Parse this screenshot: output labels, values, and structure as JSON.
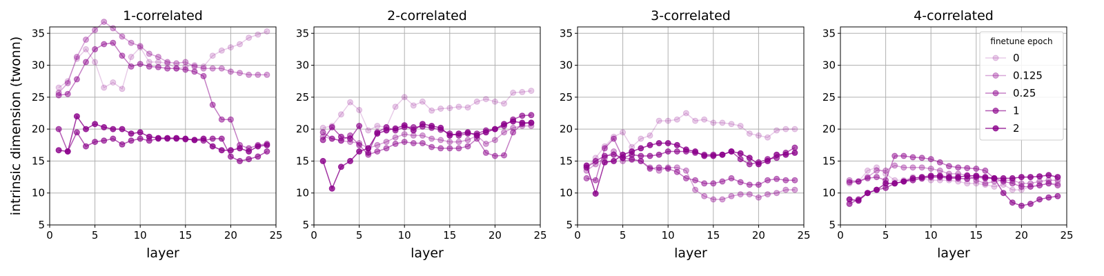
{
  "figure": {
    "ylabel": "intrinsic dimension (twonn)",
    "xlabel": "layer",
    "legend_title": "finetune epoch",
    "legend_position": "top-right of last panel"
  },
  "colors": {
    "series": "#8b008b",
    "grid": "#b0b0b0",
    "axis": "#000000"
  },
  "series_alpha": [
    0.2,
    0.35,
    0.5,
    0.65,
    0.8
  ],
  "chart_data": [
    {
      "type": "line",
      "title": "1-correlated",
      "xlabel": "layer",
      "ylabel": "intrinsic dimension (twonn)",
      "xlim": [
        0,
        25
      ],
      "ylim": [
        5,
        36
      ],
      "xticks": [
        0,
        5,
        10,
        15,
        20,
        25
      ],
      "yticks": [
        5,
        10,
        15,
        20,
        25,
        30,
        35
      ],
      "grid": true,
      "x": [
        1,
        2,
        3,
        4,
        5,
        6,
        7,
        8,
        9,
        10,
        11,
        12,
        13,
        14,
        15,
        16,
        17,
        18,
        19,
        20,
        21,
        22,
        23,
        24
      ],
      "series": [
        {
          "name": "0",
          "values": [
            26.5,
            27.5,
            31.0,
            32.5,
            30.5,
            26.5,
            27.3,
            26.3,
            31.3,
            32.8,
            30.5,
            30.5,
            30.3,
            29.5,
            29.8,
            30.0,
            29.8,
            31.5,
            32.3,
            32.8,
            33.3,
            34.3,
            34.8,
            35.3
          ]
        },
        {
          "name": "0.125",
          "values": [
            25.7,
            27.2,
            31.3,
            34.0,
            35.5,
            36.8,
            35.8,
            34.5,
            33.5,
            33.0,
            31.8,
            31.3,
            30.5,
            30.3,
            30.5,
            29.8,
            29.5,
            29.5,
            29.5,
            29.0,
            28.8,
            28.5,
            28.5,
            28.5
          ]
        },
        {
          "name": "0.25",
          "values": [
            25.3,
            25.5,
            27.8,
            30.5,
            32.5,
            33.3,
            33.5,
            31.5,
            29.8,
            30.2,
            29.8,
            29.7,
            29.5,
            29.5,
            29.3,
            29.0,
            28.3,
            23.8,
            21.5,
            21.5,
            17.5,
            17.0,
            17.5,
            17.7
          ]
        },
        {
          "name": "1",
          "values": [
            20.0,
            16.5,
            19.5,
            17.3,
            18.0,
            18.2,
            18.5,
            17.6,
            18.2,
            18.5,
            18.2,
            18.5,
            18.5,
            18.5,
            18.4,
            18.3,
            18.2,
            18.5,
            18.5,
            15.7,
            15.0,
            15.3,
            15.7,
            16.5
          ]
        },
        {
          "name": "2",
          "values": [
            16.7,
            16.5,
            22.0,
            20.0,
            20.8,
            20.3,
            20.0,
            20.0,
            19.3,
            19.5,
            18.8,
            18.6,
            18.6,
            18.6,
            18.5,
            18.3,
            18.5,
            17.3,
            16.7,
            16.7,
            17.0,
            16.5,
            17.3,
            17.5
          ]
        }
      ]
    },
    {
      "type": "line",
      "title": "2-correlated",
      "xlabel": "layer",
      "ylabel": "",
      "xlim": [
        0,
        25
      ],
      "ylim": [
        5,
        36
      ],
      "xticks": [
        0,
        5,
        10,
        15,
        20,
        25
      ],
      "yticks": [
        5,
        10,
        15,
        20,
        25,
        30,
        35
      ],
      "grid": true,
      "x": [
        1,
        2,
        3,
        4,
        5,
        6,
        7,
        8,
        9,
        10,
        11,
        12,
        13,
        14,
        15,
        16,
        17,
        18,
        19,
        20,
        21,
        22,
        23,
        24
      ],
      "series": [
        {
          "name": "0",
          "values": [
            20.2,
            20.5,
            22.3,
            24.2,
            23.0,
            19.8,
            20.5,
            20.3,
            23.5,
            25.0,
            23.7,
            24.3,
            22.9,
            23.2,
            23.3,
            23.5,
            23.4,
            24.3,
            24.7,
            24.3,
            24.0,
            25.7,
            25.8,
            26.0
          ]
        },
        {
          "name": "0.125",
          "values": [
            18.8,
            18.5,
            18.2,
            18.0,
            17.8,
            17.0,
            17.5,
            18.0,
            18.7,
            19.2,
            19.0,
            19.0,
            18.5,
            18.3,
            18.0,
            18.0,
            18.3,
            19.0,
            17.7,
            18.3,
            19.5,
            20.2,
            20.5,
            20.5
          ]
        },
        {
          "name": "0.25",
          "values": [
            19.5,
            18.5,
            18.2,
            19.0,
            17.5,
            16.0,
            16.5,
            17.0,
            17.7,
            18.0,
            17.8,
            17.8,
            17.2,
            17.0,
            17.0,
            17.0,
            17.3,
            18.5,
            16.3,
            15.8,
            15.9,
            19.5,
            20.8,
            21.0
          ]
        },
        {
          "name": "1",
          "values": [
            18.3,
            20.3,
            18.8,
            18.5,
            20.5,
            16.3,
            19.5,
            20.3,
            19.8,
            20.3,
            20.3,
            20.4,
            20.2,
            19.9,
            19.3,
            19.0,
            19.3,
            19.3,
            19.8,
            20.0,
            20.5,
            21.5,
            22.1,
            22.2
          ]
        },
        {
          "name": "2",
          "values": [
            15.0,
            10.7,
            14.1,
            15.0,
            16.5,
            17.0,
            19.3,
            19.8,
            20.1,
            20.6,
            19.8,
            20.8,
            20.5,
            20.2,
            19.0,
            19.3,
            19.5,
            19.0,
            19.5,
            20.0,
            20.8,
            21.2,
            21.0,
            21.0
          ]
        }
      ]
    },
    {
      "type": "line",
      "title": "3-correlated",
      "xlabel": "layer",
      "ylabel": "",
      "xlim": [
        0,
        25
      ],
      "ylim": [
        5,
        36
      ],
      "xticks": [
        0,
        5,
        10,
        15,
        20,
        25
      ],
      "yticks": [
        5,
        10,
        15,
        20,
        25,
        30,
        35
      ],
      "grid": true,
      "x": [
        1,
        2,
        3,
        4,
        5,
        6,
        7,
        8,
        9,
        10,
        11,
        12,
        13,
        14,
        15,
        16,
        17,
        18,
        19,
        20,
        21,
        22,
        23,
        24
      ],
      "series": [
        {
          "name": "0",
          "values": [
            14.0,
            15.5,
            17.3,
            18.8,
            19.5,
            17.2,
            18.5,
            19.0,
            21.3,
            21.3,
            21.5,
            22.5,
            21.3,
            21.5,
            21.0,
            21.0,
            20.8,
            20.5,
            19.3,
            19.0,
            18.7,
            19.8,
            20.0,
            20.0
          ]
        },
        {
          "name": "0.125",
          "values": [
            13.5,
            14.5,
            15.5,
            16.5,
            15.0,
            15.2,
            15.0,
            14.0,
            13.5,
            14.0,
            14.0,
            13.5,
            10.5,
            9.5,
            9.0,
            9.0,
            9.5,
            9.8,
            9.8,
            9.3,
            9.8,
            10.0,
            10.5,
            10.5
          ]
        },
        {
          "name": "0.25",
          "values": [
            12.3,
            12.0,
            17.0,
            18.5,
            15.5,
            15.3,
            15.0,
            13.8,
            14.0,
            13.8,
            13.3,
            12.3,
            12.0,
            11.5,
            11.5,
            11.8,
            12.3,
            11.7,
            11.3,
            11.3,
            12.0,
            12.2,
            12.0,
            12.0
          ]
        },
        {
          "name": "1",
          "values": [
            14.0,
            15.0,
            15.8,
            16.0,
            15.5,
            16.0,
            15.8,
            15.8,
            16.0,
            16.5,
            16.5,
            16.5,
            16.3,
            16.0,
            16.0,
            16.0,
            16.5,
            15.3,
            14.5,
            14.8,
            15.3,
            15.5,
            16.3,
            17.1
          ]
        },
        {
          "name": "2",
          "values": [
            14.3,
            9.9,
            14.8,
            15.0,
            16.0,
            16.5,
            17.0,
            17.5,
            17.8,
            17.8,
            17.5,
            16.8,
            16.5,
            15.8,
            15.8,
            16.0,
            16.5,
            16.2,
            15.5,
            14.5,
            15.0,
            16.0,
            16.0,
            16.3
          ]
        }
      ]
    },
    {
      "type": "line",
      "title": "4-correlated",
      "xlabel": "layer",
      "ylabel": "",
      "xlim": [
        0,
        25
      ],
      "ylim": [
        5,
        36
      ],
      "xticks": [
        0,
        5,
        10,
        15,
        20,
        25
      ],
      "yticks": [
        5,
        10,
        15,
        20,
        25,
        30,
        35
      ],
      "grid": true,
      "legend": "top-right",
      "x": [
        1,
        2,
        3,
        4,
        5,
        6,
        7,
        8,
        9,
        10,
        11,
        12,
        13,
        14,
        15,
        16,
        17,
        18,
        19,
        20,
        21,
        22,
        23,
        24
      ],
      "series": [
        {
          "name": "0",
          "values": [
            11.5,
            11.8,
            13.5,
            14.0,
            13.0,
            12.0,
            12.0,
            12.5,
            12.2,
            12.0,
            12.0,
            12.0,
            11.8,
            11.5,
            11.5,
            11.3,
            11.0,
            11.3,
            10.5,
            10.5,
            11.0,
            11.2,
            11.5,
            11.5
          ]
        },
        {
          "name": "0.125",
          "values": [
            12.0,
            11.8,
            12.5,
            13.5,
            13.5,
            14.3,
            14.0,
            14.0,
            14.0,
            13.8,
            13.5,
            13.0,
            13.0,
            12.8,
            12.0,
            11.5,
            11.8,
            12.0,
            12.0,
            11.5,
            11.5,
            11.8,
            12.0,
            12.0
          ]
        },
        {
          "name": "0.25",
          "values": [
            11.7,
            11.8,
            12.3,
            12.5,
            12.0,
            15.8,
            15.8,
            15.6,
            15.5,
            15.3,
            14.8,
            14.2,
            14.0,
            13.9,
            13.8,
            13.5,
            12.3,
            11.8,
            11.5,
            11.0,
            11.0,
            11.2,
            11.5,
            11.2
          ]
        },
        {
          "name": "1",
          "values": [
            8.3,
            9.0,
            10.0,
            10.5,
            10.8,
            11.5,
            11.8,
            12.0,
            12.3,
            12.5,
            12.5,
            12.3,
            12.3,
            12.2,
            12.5,
            12.3,
            12.3,
            10.0,
            8.5,
            8.0,
            8.3,
            9.0,
            9.3,
            9.5
          ]
        },
        {
          "name": "2",
          "values": [
            9.0,
            8.8,
            10.0,
            10.5,
            11.5,
            11.5,
            11.8,
            12.3,
            12.5,
            12.7,
            12.7,
            12.5,
            12.5,
            12.7,
            12.7,
            12.5,
            12.3,
            12.3,
            12.3,
            12.5,
            12.5,
            12.6,
            12.8,
            12.5
          ]
        }
      ]
    }
  ]
}
